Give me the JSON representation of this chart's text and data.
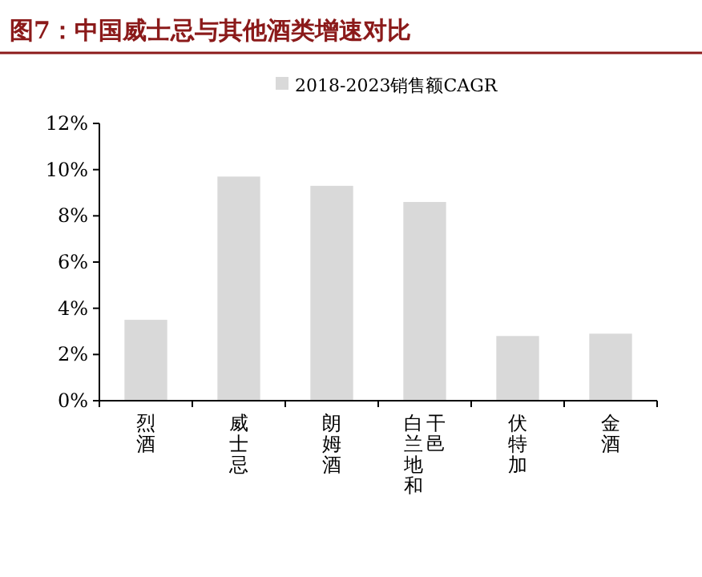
{
  "chart_data": {
    "type": "bar",
    "title": "图7：中国威士忌与其他酒类增速对比",
    "categories": [
      "烈酒",
      "威士忌",
      "朗姆酒",
      "白兰地和干邑",
      "伏特加",
      "金酒"
    ],
    "series": [
      {
        "name": "2018-2023销售额CAGR",
        "color": "#d9d9d9",
        "values": [
          3.5,
          9.7,
          9.3,
          8.6,
          2.8,
          2.9
        ]
      }
    ],
    "ylim": [
      0,
      12
    ],
    "yticks": [
      {
        "value": 0,
        "label": "0%"
      },
      {
        "value": 2,
        "label": "2%"
      },
      {
        "value": 4,
        "label": "4%"
      },
      {
        "value": 6,
        "label": "6%"
      },
      {
        "value": 8,
        "label": "8%"
      },
      {
        "value": 10,
        "label": "10%"
      },
      {
        "value": 12,
        "label": "12%"
      }
    ],
    "legend": "top",
    "grid": false
  }
}
